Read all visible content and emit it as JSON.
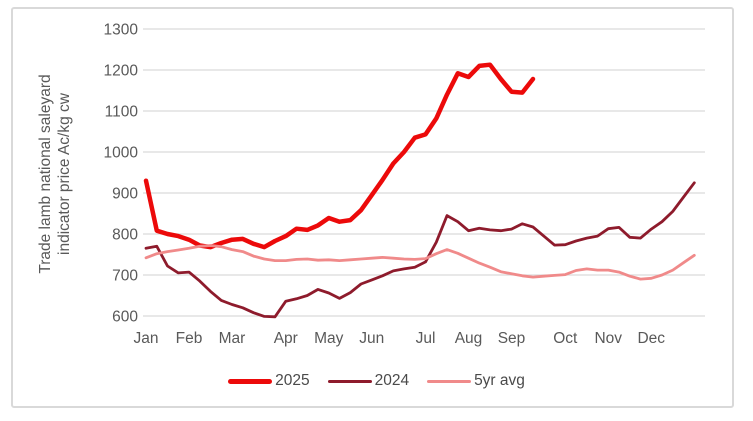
{
  "colors": {
    "text": "#595959",
    "grid": "#d9d9d9",
    "frame": "#d9d9d9",
    "background": "#ffffff",
    "legend_text": "#4a4a4a"
  },
  "chart_data": {
    "type": "line",
    "title": "",
    "y_axis": {
      "label_line1": "Trade lamb national saleyard",
      "label_line2": "indicator price Ac/kg cw",
      "min": 600,
      "max": 1300,
      "ticks": [
        1300,
        1200,
        1100,
        1000,
        900,
        800,
        700,
        600
      ],
      "grid": true
    },
    "x_axis": {
      "tick_labels": [
        "Jan",
        "Feb",
        "Mar",
        "Apr",
        "May",
        "Jun",
        "Jul",
        "Aug",
        "Sep",
        "Oct",
        "Nov",
        "Dec"
      ],
      "month_start_weeks": [
        1,
        5,
        9,
        14,
        18,
        22,
        27,
        31,
        35,
        40,
        44,
        48
      ],
      "weeks_total": 52
    },
    "legend_position": "bottom",
    "series": [
      {
        "name": "2025",
        "color": "#ec0a0a",
        "stroke_width": 4.5,
        "start_week": 1,
        "values": [
          930,
          808,
          800,
          795,
          786,
          772,
          768,
          778,
          786,
          788,
          776,
          768,
          783,
          795,
          813,
          810,
          821,
          839,
          830,
          834,
          858,
          895,
          932,
          972,
          1000,
          1035,
          1043,
          1082,
          1140,
          1192,
          1183,
          1210,
          1213,
          1178,
          1147,
          1145,
          1178
        ]
      },
      {
        "name": "2024",
        "color": "#8e1b2c",
        "stroke_width": 2.8,
        "start_week": 1,
        "values": [
          765,
          770,
          722,
          705,
          707,
          685,
          660,
          638,
          628,
          620,
          608,
          599,
          598,
          636,
          642,
          650,
          665,
          656,
          643,
          657,
          678,
          688,
          698,
          710,
          715,
          719,
          732,
          780,
          845,
          830,
          808,
          814,
          810,
          808,
          812,
          825,
          817,
          795,
          773,
          774,
          783,
          790,
          795,
          813,
          816,
          792,
          790,
          812,
          830,
          855,
          890,
          925
        ]
      },
      {
        "name": "5yr avg",
        "color": "#f08a8a",
        "stroke_width": 2.8,
        "start_week": 1,
        "values": [
          742,
          752,
          757,
          761,
          765,
          770,
          772,
          769,
          762,
          757,
          746,
          739,
          735,
          735,
          738,
          739,
          736,
          737,
          735,
          737,
          739,
          741,
          743,
          741,
          739,
          738,
          740,
          752,
          762,
          753,
          741,
          729,
          719,
          708,
          703,
          698,
          695,
          697,
          699,
          701,
          711,
          715,
          712,
          712,
          707,
          697,
          690,
          692,
          700,
          712,
          730,
          748
        ]
      }
    ]
  }
}
